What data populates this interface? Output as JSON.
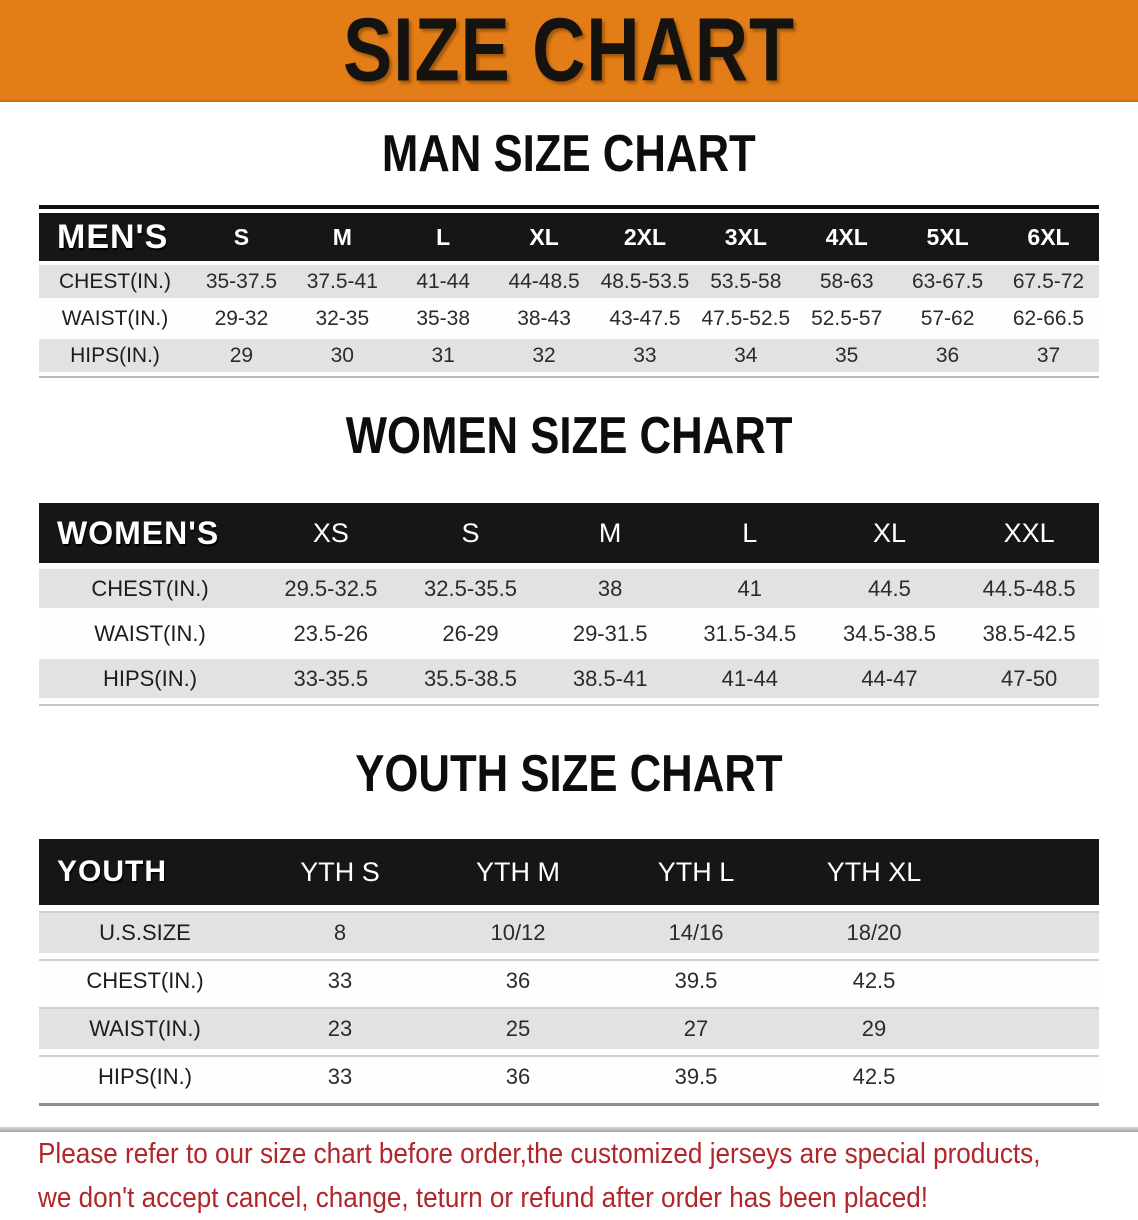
{
  "banner": {
    "title": "SIZE CHART"
  },
  "colors": {
    "banner_bg": "#E27D17",
    "table_header_bg": "#161616",
    "row_alt_bg": "#E2E2E2",
    "notice_red": "#B1262B"
  },
  "sections": [
    {
      "id": "men",
      "heading": "MAN SIZE CHART",
      "group_label": "MEN'S",
      "columns": [
        "S",
        "M",
        "L",
        "XL",
        "2XL",
        "3XL",
        "4XL",
        "5XL",
        "6XL"
      ],
      "rows": [
        {
          "label": "CHEST(IN.)",
          "values": [
            "35-37.5",
            "37.5-41",
            "41-44",
            "44-48.5",
            "48.5-53.5",
            "53.5-58",
            "58-63",
            "63-67.5",
            "67.5-72"
          ]
        },
        {
          "label": "WAIST(IN.)",
          "values": [
            "29-32",
            "32-35",
            "35-38",
            "38-43",
            "43-47.5",
            "47.5-52.5",
            "52.5-57",
            "57-62",
            "62-66.5"
          ]
        },
        {
          "label": "HIPS(IN.)",
          "values": [
            "29",
            "30",
            "31",
            "32",
            "33",
            "34",
            "35",
            "36",
            "37"
          ]
        }
      ]
    },
    {
      "id": "women",
      "heading": "WOMEN SIZE CHART",
      "group_label": "WOMEN'S",
      "columns": [
        "XS",
        "S",
        "M",
        "L",
        "XL",
        "XXL"
      ],
      "rows": [
        {
          "label": "CHEST(IN.)",
          "values": [
            "29.5-32.5",
            "32.5-35.5",
            "38",
            "41",
            "44.5",
            "44.5-48.5"
          ]
        },
        {
          "label": "WAIST(IN.)",
          "values": [
            "23.5-26",
            "26-29",
            "29-31.5",
            "31.5-34.5",
            "34.5-38.5",
            "38.5-42.5"
          ]
        },
        {
          "label": "HIPS(IN.)",
          "values": [
            "33-35.5",
            "35.5-38.5",
            "38.5-41",
            "41-44",
            "44-47",
            "47-50"
          ]
        }
      ]
    },
    {
      "id": "youth",
      "heading": "YOUTH SIZE CHART",
      "group_label": "YOUTH",
      "columns": [
        "YTH S",
        "YTH M",
        "YTH L",
        "YTH XL"
      ],
      "filler_column": true,
      "rows": [
        {
          "label": "U.S.SIZE",
          "values": [
            "8",
            "10/12",
            "14/16",
            "18/20"
          ]
        },
        {
          "label": "CHEST(IN.)",
          "values": [
            "33",
            "36",
            "39.5",
            "42.5"
          ]
        },
        {
          "label": "WAIST(IN.)",
          "values": [
            "23",
            "25",
            "27",
            "29"
          ]
        },
        {
          "label": "HIPS(IN.)",
          "values": [
            "33",
            "36",
            "39.5",
            "42.5"
          ]
        }
      ]
    }
  ],
  "footer": {
    "lines": [
      "Please refer to our size chart before order,the customized jerseys are special products,",
      "we don't accept cancel, change, teturn or refund after order has been placed!"
    ]
  }
}
